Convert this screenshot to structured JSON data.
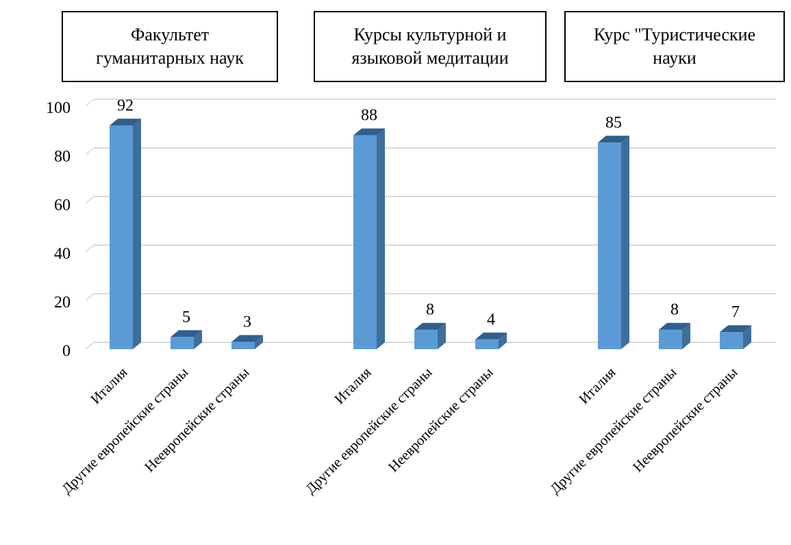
{
  "chart_data": {
    "type": "bar",
    "three_d": true,
    "groups": [
      {
        "title": "Факультет гуманитарных наук",
        "categories": [
          "Италия",
          "Другие европейские страны",
          "Неевропейские страны"
        ],
        "values": [
          92,
          5,
          3
        ]
      },
      {
        "title": "Курсы культурной и языковой медитации",
        "categories": [
          "Италия",
          "Другие европейские страны",
          "Неевропейские страны"
        ],
        "values": [
          88,
          8,
          4
        ]
      },
      {
        "title": "Курс \"Туристические науки",
        "categories": [
          "Италия",
          "Другие европейские страны",
          "Неевропейские страны"
        ],
        "values": [
          85,
          8,
          7
        ]
      }
    ],
    "ylim": [
      0,
      100
    ],
    "yticks": [
      0,
      20,
      40,
      60,
      80,
      100
    ],
    "grid": true,
    "legend": "none",
    "colors": {
      "bar_front": "#5B9BD5",
      "bar_side": "#3E6E9A",
      "bar_top": "#2F5F8D",
      "grid": "#D9D9D9"
    }
  }
}
